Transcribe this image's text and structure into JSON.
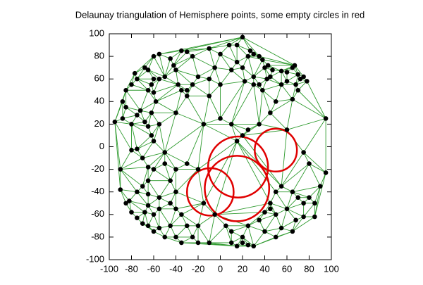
{
  "chart_data": {
    "type": "delaunay",
    "title": "Delaunay triangulation of Hemisphere points, some empty circles in red",
    "xlim": [
      -100,
      100
    ],
    "ylim": [
      -100,
      100
    ],
    "xticks": [
      -100,
      -80,
      -60,
      -40,
      -20,
      0,
      20,
      40,
      60,
      80,
      100
    ],
    "yticks": [
      -100,
      -80,
      -60,
      -40,
      -20,
      0,
      20,
      40,
      60,
      80,
      100
    ],
    "point_color": "#000000",
    "edge_color": "#2e9a2e",
    "circle_color": "#e00000",
    "points": {
      "x": [
        -60,
        -55,
        -45,
        -35,
        -30,
        -25,
        -10,
        0,
        8,
        15,
        20,
        27,
        30,
        25,
        35,
        38,
        40,
        43,
        47,
        55,
        60,
        65,
        67,
        70,
        72,
        75,
        78,
        68,
        60,
        55,
        45,
        42,
        35,
        38,
        30,
        22,
        30,
        20,
        15,
        10,
        -5,
        -10,
        0,
        -20,
        -25,
        -30,
        -35,
        -38,
        -40,
        -42,
        -50,
        -55,
        -60,
        -62,
        -65,
        -68,
        -75,
        -77,
        -80,
        -85,
        -88,
        -85,
        -72,
        -65,
        -60,
        -58,
        -62,
        -68,
        -75,
        -80,
        -88,
        -95,
        -65,
        -62,
        -55,
        -40,
        -30,
        -10,
        0,
        -15,
        10,
        20,
        25,
        15,
        50,
        65,
        70,
        45,
        35,
        60,
        95,
        75,
        80,
        95,
        90,
        85,
        75,
        80,
        70,
        65,
        55,
        50,
        45,
        45,
        40,
        50,
        60,
        68,
        75,
        85,
        65,
        55,
        50,
        40,
        35,
        25,
        20,
        20,
        25,
        30,
        15,
        10,
        5,
        10,
        -5,
        -10,
        -20,
        -25,
        -35,
        -40,
        -45,
        -50,
        -55,
        -60,
        -65,
        -70,
        -75,
        -80,
        -85,
        -82,
        -90,
        -75,
        -70,
        -65,
        -55,
        -55,
        -45,
        -40,
        -40,
        -45,
        -60,
        -65,
        -70,
        -75,
        -80,
        -90,
        -65,
        -50,
        -40,
        -30,
        -20,
        -35,
        -30,
        -15,
        -20,
        -60,
        -65,
        -68,
        -50,
        -60
      ],
      "y": [
        80,
        82,
        78,
        85,
        84,
        80,
        87,
        82,
        90,
        90,
        97,
        85,
        82,
        80,
        80,
        77,
        70,
        72,
        68,
        67,
        66,
        70,
        72,
        64,
        60,
        62,
        58,
        55,
        58,
        55,
        62,
        60,
        55,
        50,
        55,
        58,
        62,
        70,
        75,
        68,
        70,
        60,
        55,
        62,
        55,
        50,
        50,
        55,
        68,
        72,
        62,
        60,
        60,
        55,
        68,
        70,
        60,
        65,
        55,
        50,
        40,
        35,
        32,
        50,
        48,
        40,
        30,
        22,
        28,
        20,
        25,
        22,
        18,
        10,
        20,
        30,
        45,
        45,
        25,
        20,
        20,
        10,
        15,
        5,
        40,
        42,
        50,
        30,
        20,
        15,
        25,
        -5,
        -15,
        -23,
        -35,
        -50,
        -50,
        -45,
        -45,
        -40,
        -35,
        -40,
        -50,
        -55,
        -58,
        -60,
        -55,
        -65,
        -62,
        -62,
        -75,
        -72,
        -80,
        -75,
        -65,
        -70,
        -80,
        -85,
        -87,
        -88,
        -88,
        -75,
        -70,
        -85,
        -60,
        -85,
        -70,
        -80,
        -85,
        -80,
        -70,
        -80,
        -72,
        -75,
        -70,
        -68,
        -63,
        -58,
        -50,
        -48,
        -38,
        -40,
        -35,
        -42,
        -45,
        -55,
        -50,
        -55,
        -40,
        -30,
        -20,
        -18,
        -10,
        -2,
        -3,
        -20,
        -30,
        -15,
        -20,
        -15,
        -20,
        -60,
        -70,
        -50,
        -85,
        -60,
        -52,
        -58,
        -5,
        5
      ]
    },
    "circles": [
      {
        "x": 16,
        "y": -18,
        "r": 27
      },
      {
        "x": 50,
        "y": -3,
        "r": 19
      },
      {
        "x": 15,
        "y": -37,
        "r": 29
      },
      {
        "x": -9,
        "y": -40,
        "r": 21
      }
    ]
  }
}
